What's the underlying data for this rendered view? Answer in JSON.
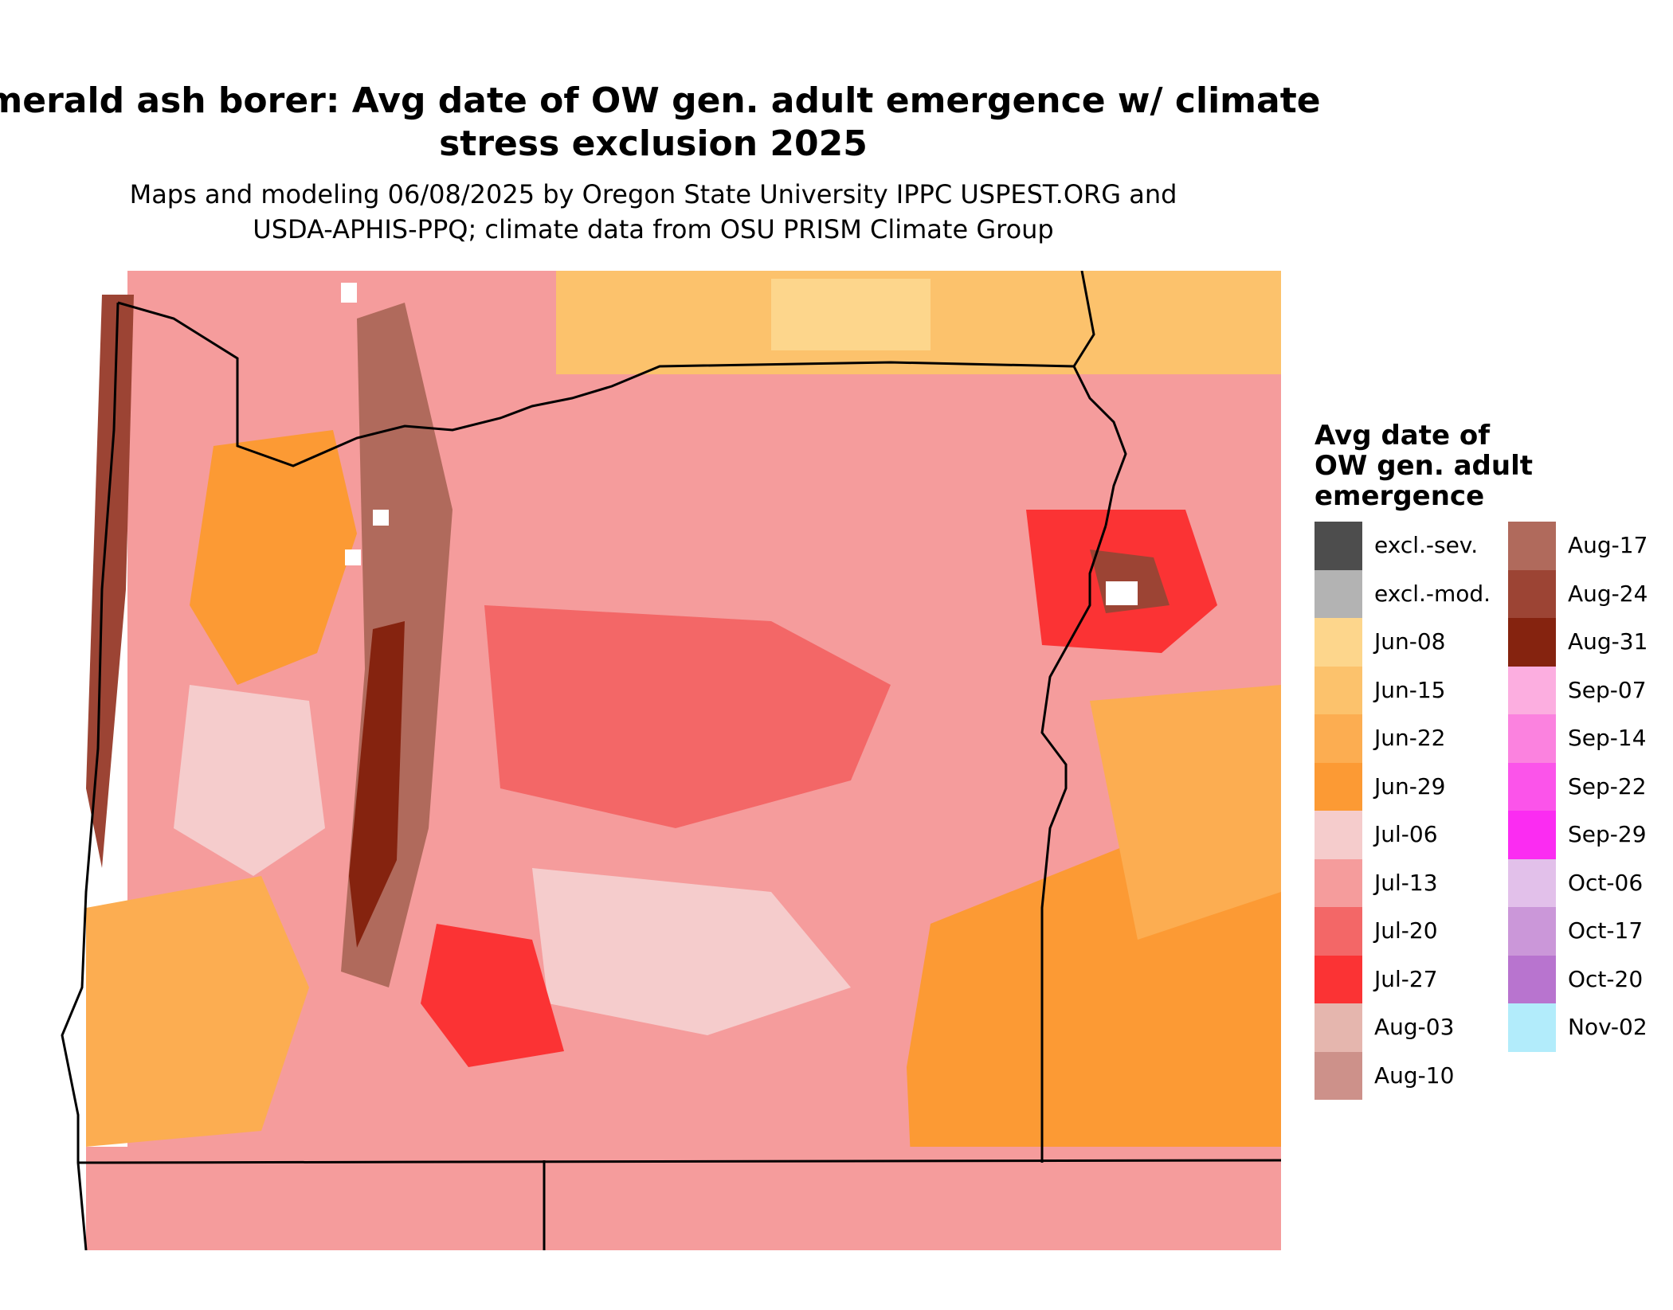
{
  "header": {
    "title_line1": "merald ash borer: Avg date of OW gen. adult emergence w/ climate",
    "title_line2": "stress exclusion 2025",
    "subtitle_line1": "Maps and modeling 06/08/2025 by Oregon State University IPPC USPEST.ORG and",
    "subtitle_line2": "USDA-APHIS-PPQ; climate data from OSU PRISM Climate Group"
  },
  "legend": {
    "title_line1": "Avg date of",
    "title_line2": "OW gen. adult",
    "title_line3": "emergence",
    "column1": [
      {
        "label": "excl.-sev.",
        "color": "#4d4d4d"
      },
      {
        "label": "excl.-mod.",
        "color": "#b3b3b3"
      },
      {
        "label": "Jun-08",
        "color": "#fdd68c"
      },
      {
        "label": "Jun-15",
        "color": "#fcc26c"
      },
      {
        "label": "Jun-22",
        "color": "#fcad51"
      },
      {
        "label": "Jun-29",
        "color": "#fc9a34"
      },
      {
        "label": "Jul-06",
        "color": "#f5cccc"
      },
      {
        "label": "Jul-13",
        "color": "#f59c9c"
      },
      {
        "label": "Jul-20",
        "color": "#f36767"
      },
      {
        "label": "Jul-27",
        "color": "#fb3334"
      },
      {
        "label": "Aug-03",
        "color": "#e5b6ae"
      },
      {
        "label": "Aug-10",
        "color": "#cd918a"
      }
    ],
    "column2": [
      {
        "label": "Aug-17",
        "color": "#b06a5c"
      },
      {
        "label": "Aug-24",
        "color": "#9c4434"
      },
      {
        "label": "Aug-31",
        "color": "#85230f"
      },
      {
        "label": "Sep-07",
        "color": "#fcaee0"
      },
      {
        "label": "Sep-14",
        "color": "#fb82df"
      },
      {
        "label": "Sep-22",
        "color": "#fb54ea"
      },
      {
        "label": "Sep-29",
        "color": "#fb2cf2"
      },
      {
        "label": "Oct-06",
        "color": "#e2c0ea"
      },
      {
        "label": "Oct-17",
        "color": "#cb97d9"
      },
      {
        "label": "Oct-20",
        "color": "#b874cf"
      },
      {
        "label": "Nov-02",
        "color": "#b2ecfb"
      }
    ]
  },
  "map": {
    "region": "Oregon",
    "colors": {
      "boundary": "#000000",
      "background": "#ffffff",
      "snow": "#ffffff"
    }
  }
}
